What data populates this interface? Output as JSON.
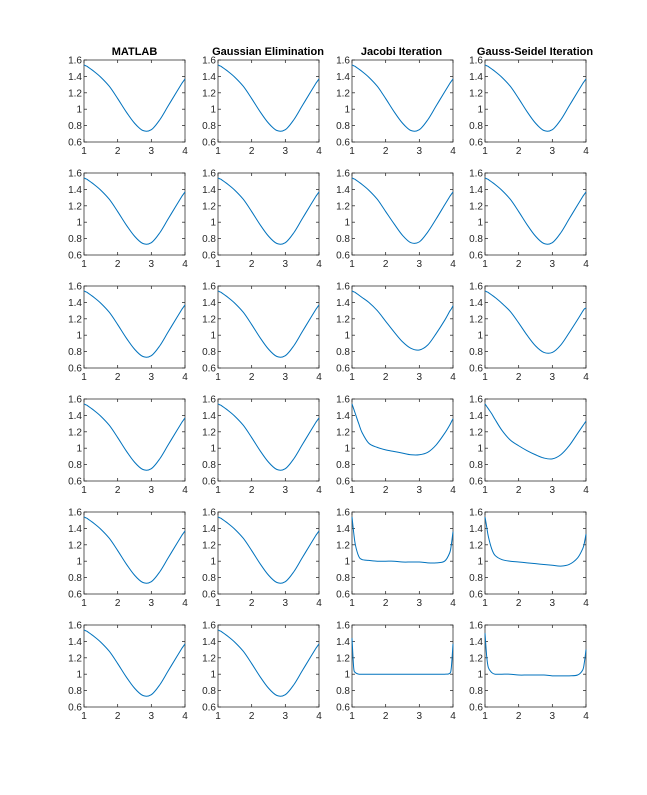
{
  "figure": {
    "columns": [
      "MATLAB",
      "Gaussian Elimination",
      "Jacobi Iteration",
      "Gauss-Seidel Iteration"
    ],
    "line_color": "#0072BD"
  },
  "chart_data": {
    "type": "line",
    "layout": "small-multiples",
    "rows": 6,
    "cols": 4,
    "grid": false,
    "xlim": [
      1,
      4
    ],
    "ylim": [
      0.6,
      1.6
    ],
    "xticks": [
      1,
      2,
      3,
      4
    ],
    "yticks": [
      0.6,
      0.8,
      1,
      1.2,
      1.4,
      1.6
    ],
    "x": [
      1,
      1.05,
      1.1,
      1.2,
      1.3,
      1.5,
      1.75,
      2,
      2.25,
      2.5,
      2.75,
      3,
      3.25,
      3.5,
      3.75,
      3.9,
      3.95,
      4
    ],
    "panels": [
      {
        "row": 0,
        "col": 0,
        "title": "MATLAB",
        "values": [
          1.54,
          1.53,
          1.52,
          1.49,
          1.46,
          1.39,
          1.28,
          1.13,
          0.97,
          0.83,
          0.74,
          0.75,
          0.87,
          1.04,
          1.21,
          1.31,
          1.34,
          1.37
        ]
      },
      {
        "row": 0,
        "col": 1,
        "title": "Gaussian Elimination",
        "values": [
          1.54,
          1.53,
          1.52,
          1.49,
          1.46,
          1.39,
          1.28,
          1.13,
          0.97,
          0.83,
          0.74,
          0.75,
          0.87,
          1.04,
          1.21,
          1.31,
          1.34,
          1.37
        ]
      },
      {
        "row": 0,
        "col": 2,
        "title": "Jacobi Iteration",
        "values": [
          1.54,
          1.53,
          1.52,
          1.49,
          1.46,
          1.39,
          1.28,
          1.13,
          0.97,
          0.83,
          0.74,
          0.75,
          0.87,
          1.04,
          1.21,
          1.31,
          1.34,
          1.37
        ]
      },
      {
        "row": 0,
        "col": 3,
        "title": "Gauss-Seidel Iteration",
        "values": [
          1.54,
          1.53,
          1.52,
          1.49,
          1.46,
          1.39,
          1.28,
          1.13,
          0.97,
          0.83,
          0.74,
          0.75,
          0.87,
          1.04,
          1.21,
          1.31,
          1.34,
          1.37
        ]
      },
      {
        "row": 1,
        "col": 0,
        "title": "",
        "values": [
          1.54,
          1.53,
          1.52,
          1.49,
          1.46,
          1.39,
          1.28,
          1.13,
          0.97,
          0.83,
          0.74,
          0.75,
          0.87,
          1.04,
          1.21,
          1.31,
          1.34,
          1.37
        ]
      },
      {
        "row": 1,
        "col": 1,
        "title": "",
        "values": [
          1.54,
          1.53,
          1.52,
          1.49,
          1.46,
          1.39,
          1.28,
          1.13,
          0.97,
          0.83,
          0.74,
          0.75,
          0.87,
          1.04,
          1.21,
          1.31,
          1.34,
          1.37
        ]
      },
      {
        "row": 1,
        "col": 2,
        "title": "",
        "values": [
          1.54,
          1.53,
          1.52,
          1.49,
          1.46,
          1.39,
          1.28,
          1.13,
          0.98,
          0.84,
          0.75,
          0.76,
          0.88,
          1.04,
          1.21,
          1.31,
          1.34,
          1.37
        ]
      },
      {
        "row": 1,
        "col": 3,
        "title": "",
        "values": [
          1.54,
          1.53,
          1.52,
          1.49,
          1.46,
          1.39,
          1.28,
          1.13,
          0.97,
          0.83,
          0.74,
          0.75,
          0.87,
          1.04,
          1.21,
          1.31,
          1.34,
          1.37
        ]
      },
      {
        "row": 2,
        "col": 0,
        "title": "",
        "values": [
          1.54,
          1.53,
          1.52,
          1.49,
          1.46,
          1.39,
          1.28,
          1.13,
          0.97,
          0.83,
          0.74,
          0.75,
          0.87,
          1.04,
          1.21,
          1.31,
          1.34,
          1.37
        ]
      },
      {
        "row": 2,
        "col": 1,
        "title": "",
        "values": [
          1.54,
          1.53,
          1.52,
          1.49,
          1.46,
          1.39,
          1.28,
          1.13,
          0.97,
          0.83,
          0.74,
          0.75,
          0.87,
          1.04,
          1.21,
          1.31,
          1.34,
          1.37
        ]
      },
      {
        "row": 2,
        "col": 2,
        "title": "",
        "values": [
          1.54,
          1.53,
          1.52,
          1.49,
          1.46,
          1.4,
          1.3,
          1.17,
          1.04,
          0.92,
          0.84,
          0.82,
          0.88,
          1.02,
          1.18,
          1.29,
          1.32,
          1.36
        ]
      },
      {
        "row": 2,
        "col": 3,
        "title": "",
        "values": [
          1.54,
          1.53,
          1.52,
          1.49,
          1.46,
          1.39,
          1.29,
          1.15,
          1.0,
          0.87,
          0.79,
          0.79,
          0.88,
          1.03,
          1.19,
          1.29,
          1.32,
          1.33
        ]
      },
      {
        "row": 3,
        "col": 0,
        "title": "",
        "values": [
          1.54,
          1.53,
          1.52,
          1.49,
          1.46,
          1.39,
          1.28,
          1.13,
          0.97,
          0.83,
          0.74,
          0.75,
          0.87,
          1.04,
          1.21,
          1.31,
          1.34,
          1.37
        ]
      },
      {
        "row": 3,
        "col": 1,
        "title": "",
        "values": [
          1.54,
          1.53,
          1.52,
          1.49,
          1.46,
          1.39,
          1.28,
          1.13,
          0.97,
          0.83,
          0.74,
          0.75,
          0.87,
          1.04,
          1.21,
          1.31,
          1.34,
          1.37
        ]
      },
      {
        "row": 3,
        "col": 2,
        "title": "",
        "values": [
          1.54,
          1.48,
          1.42,
          1.3,
          1.19,
          1.06,
          1.01,
          0.98,
          0.96,
          0.94,
          0.92,
          0.92,
          0.95,
          1.04,
          1.18,
          1.28,
          1.32,
          1.36
        ]
      },
      {
        "row": 3,
        "col": 3,
        "title": "",
        "values": [
          1.54,
          1.51,
          1.48,
          1.42,
          1.35,
          1.22,
          1.1,
          1.03,
          0.97,
          0.92,
          0.88,
          0.87,
          0.92,
          1.03,
          1.18,
          1.27,
          1.3,
          1.33
        ]
      },
      {
        "row": 4,
        "col": 0,
        "title": "",
        "values": [
          1.54,
          1.53,
          1.52,
          1.49,
          1.46,
          1.39,
          1.28,
          1.13,
          0.97,
          0.83,
          0.74,
          0.75,
          0.87,
          1.04,
          1.21,
          1.31,
          1.34,
          1.37
        ]
      },
      {
        "row": 4,
        "col": 1,
        "title": "",
        "values": [
          1.54,
          1.53,
          1.52,
          1.49,
          1.46,
          1.39,
          1.28,
          1.13,
          0.97,
          0.83,
          0.74,
          0.75,
          0.87,
          1.04,
          1.21,
          1.31,
          1.34,
          1.37
        ]
      },
      {
        "row": 4,
        "col": 2,
        "title": "",
        "values": [
          1.54,
          1.35,
          1.2,
          1.06,
          1.02,
          1.01,
          1.0,
          1.0,
          1.0,
          0.99,
          0.99,
          0.99,
          0.98,
          0.98,
          1.0,
          1.1,
          1.2,
          1.36
        ]
      },
      {
        "row": 4,
        "col": 3,
        "title": "",
        "values": [
          1.54,
          1.42,
          1.3,
          1.15,
          1.07,
          1.02,
          1.0,
          0.99,
          0.98,
          0.97,
          0.96,
          0.95,
          0.94,
          0.96,
          1.04,
          1.15,
          1.22,
          1.33
        ]
      },
      {
        "row": 5,
        "col": 0,
        "title": "",
        "values": [
          1.54,
          1.53,
          1.52,
          1.49,
          1.46,
          1.39,
          1.28,
          1.13,
          0.97,
          0.83,
          0.74,
          0.75,
          0.87,
          1.04,
          1.21,
          1.31,
          1.34,
          1.37
        ]
      },
      {
        "row": 5,
        "col": 1,
        "title": "",
        "values": [
          1.54,
          1.53,
          1.52,
          1.49,
          1.46,
          1.39,
          1.28,
          1.13,
          0.97,
          0.83,
          0.74,
          0.75,
          0.87,
          1.04,
          1.21,
          1.31,
          1.34,
          1.37
        ]
      },
      {
        "row": 5,
        "col": 2,
        "title": "",
        "values": [
          1.44,
          1.08,
          1.02,
          1.0,
          1.0,
          1.0,
          1.0,
          1.0,
          1.0,
          1.0,
          1.0,
          1.0,
          1.0,
          1.0,
          1.0,
          1.01,
          1.08,
          1.37
        ]
      },
      {
        "row": 5,
        "col": 3,
        "title": "",
        "values": [
          1.5,
          1.22,
          1.08,
          1.02,
          1.0,
          1.0,
          1.0,
          0.99,
          0.99,
          0.99,
          0.99,
          0.98,
          0.98,
          0.98,
          0.99,
          1.05,
          1.14,
          1.3
        ]
      }
    ]
  }
}
